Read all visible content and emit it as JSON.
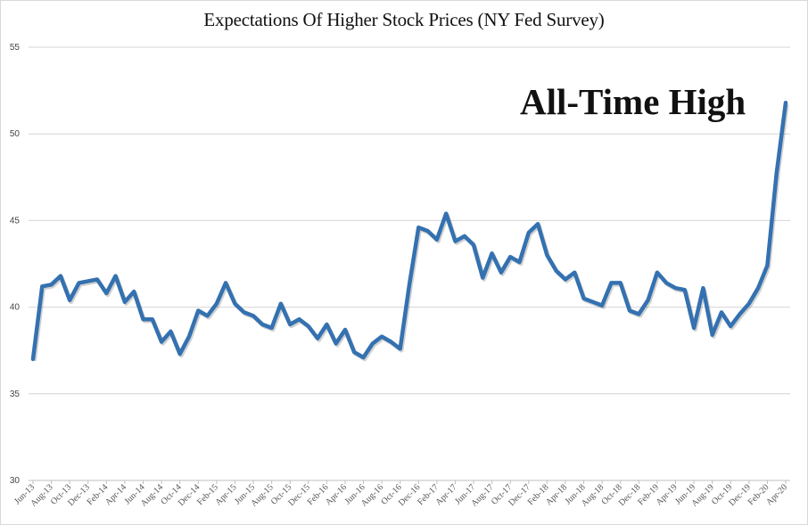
{
  "chart_data": {
    "type": "line",
    "title": "Expectations Of  Higher Stock Prices (NY Fed Survey)",
    "annotation": "All-Time High",
    "xlabel": "",
    "ylabel": "",
    "ylim": [
      30,
      55
    ],
    "yticks": [
      30,
      35,
      40,
      45,
      50,
      55
    ],
    "grid": true,
    "legend": "none",
    "line_color": "#3471b0",
    "x_tick_labels": [
      "Jun-13",
      "Aug-13",
      "Oct-13",
      "Dec-13",
      "Feb-14",
      "Apr-14",
      "Jun-14",
      "Aug-14",
      "Oct-14",
      "Dec-14",
      "Feb-15",
      "Apr-15",
      "Jun-15",
      "Aug-15",
      "Oct-15",
      "Dec-15",
      "Feb-16",
      "Apr-16",
      "Jun-16",
      "Aug-16",
      "Oct-16",
      "Dec-16",
      "Feb-17",
      "Apr-17",
      "Jun-17",
      "Aug-17",
      "Oct-17",
      "Dec-17",
      "Feb-18",
      "Apr-18",
      "Jun-18",
      "Aug-18",
      "Oct-18",
      "Dec-18",
      "Feb-19",
      "Apr-19",
      "Jun-19",
      "Aug-19",
      "Oct-19",
      "Dec-19",
      "Feb-20",
      "Apr-20"
    ],
    "series": [
      {
        "name": "Expectations of higher stock prices",
        "start": "Jun-13",
        "frequency": "monthly",
        "values": [
          37.0,
          41.2,
          41.3,
          41.8,
          40.4,
          41.4,
          41.5,
          41.6,
          40.8,
          41.8,
          40.3,
          40.9,
          39.3,
          39.3,
          38.0,
          38.6,
          37.3,
          38.3,
          39.8,
          39.5,
          40.2,
          41.4,
          40.2,
          39.7,
          39.5,
          39.0,
          38.8,
          40.2,
          39.0,
          39.3,
          38.9,
          38.2,
          39.0,
          37.9,
          38.7,
          37.4,
          37.1,
          37.9,
          38.3,
          38.0,
          37.6,
          41.3,
          44.6,
          44.4,
          43.9,
          45.4,
          43.8,
          44.1,
          43.6,
          41.7,
          43.1,
          42.0,
          42.9,
          42.6,
          44.3,
          44.8,
          43.0,
          42.1,
          41.6,
          42.0,
          40.5,
          40.3,
          40.1,
          41.4,
          41.4,
          39.8,
          39.6,
          40.4,
          42.0,
          41.4,
          41.1,
          41.0,
          38.8,
          41.1,
          38.4,
          39.7,
          38.9,
          39.6,
          40.2,
          41.1,
          42.4,
          47.7,
          51.8
        ]
      }
    ]
  }
}
